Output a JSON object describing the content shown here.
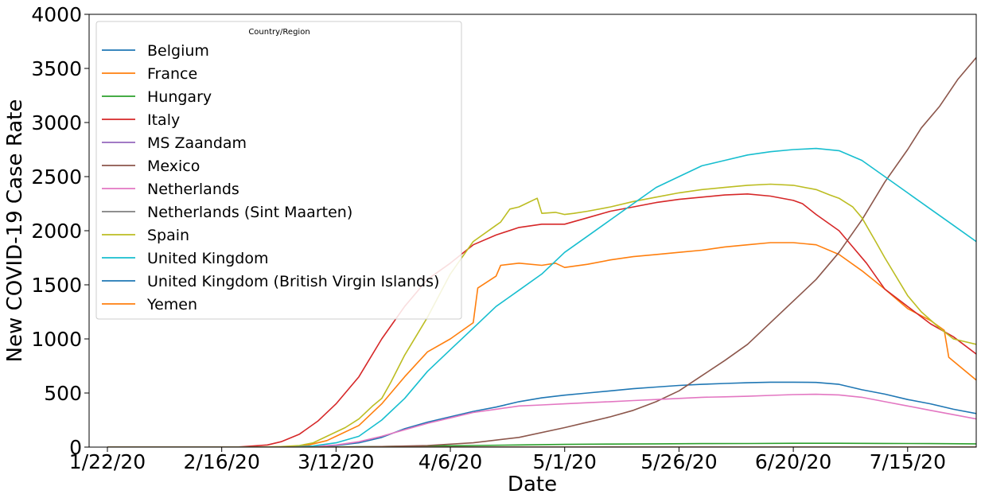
{
  "chart_data": {
    "type": "line",
    "title": "",
    "xlabel": "Date",
    "ylabel": "New COVID-19 Case Rate",
    "ylim": [
      0,
      4000
    ],
    "yticks": [
      0,
      500,
      1000,
      1500,
      2000,
      2500,
      3000,
      3500,
      4000
    ],
    "xlim": [
      -4,
      190
    ],
    "xtick_days": [
      0,
      25,
      50,
      75,
      100,
      125,
      150,
      175
    ],
    "xtick_labels": [
      "1/22/20",
      "2/16/20",
      "3/12/20",
      "4/6/20",
      "5/1/20",
      "5/26/20",
      "6/20/20",
      "7/15/20"
    ],
    "grid": false,
    "legend": {
      "title": "Country/Region",
      "location": "upper-left"
    },
    "series": [
      {
        "name": "Belgium",
        "color": "#1f77b4",
        "points": [
          [
            0,
            0
          ],
          [
            40,
            0
          ],
          [
            45,
            5
          ],
          [
            50,
            15
          ],
          [
            55,
            40
          ],
          [
            60,
            90
          ],
          [
            65,
            170
          ],
          [
            70,
            230
          ],
          [
            75,
            280
          ],
          [
            80,
            330
          ],
          [
            85,
            370
          ],
          [
            90,
            420
          ],
          [
            95,
            455
          ],
          [
            100,
            480
          ],
          [
            105,
            500
          ],
          [
            110,
            520
          ],
          [
            115,
            540
          ],
          [
            120,
            555
          ],
          [
            125,
            570
          ],
          [
            130,
            580
          ],
          [
            135,
            588
          ],
          [
            140,
            595
          ],
          [
            145,
            600
          ],
          [
            150,
            600
          ],
          [
            155,
            598
          ],
          [
            160,
            580
          ],
          [
            165,
            530
          ],
          [
            170,
            490
          ],
          [
            175,
            440
          ],
          [
            180,
            400
          ],
          [
            185,
            350
          ],
          [
            190,
            310
          ],
          [
            195,
            280
          ]
        ]
      },
      {
        "name": "France",
        "color": "#ff7f0e",
        "points": [
          [
            0,
            0
          ],
          [
            35,
            0
          ],
          [
            40,
            5
          ],
          [
            44,
            20
          ],
          [
            48,
            60
          ],
          [
            50,
            100
          ],
          [
            55,
            200
          ],
          [
            60,
            400
          ],
          [
            65,
            650
          ],
          [
            70,
            880
          ],
          [
            75,
            1000
          ],
          [
            80,
            1150
          ],
          [
            81,
            1470
          ],
          [
            85,
            1580
          ],
          [
            86,
            1680
          ],
          [
            90,
            1700
          ],
          [
            95,
            1680
          ],
          [
            98,
            1700
          ],
          [
            100,
            1660
          ],
          [
            105,
            1690
          ],
          [
            110,
            1730
          ],
          [
            115,
            1760
          ],
          [
            120,
            1780
          ],
          [
            125,
            1800
          ],
          [
            130,
            1820
          ],
          [
            135,
            1850
          ],
          [
            140,
            1870
          ],
          [
            145,
            1890
          ],
          [
            150,
            1890
          ],
          [
            155,
            1870
          ],
          [
            160,
            1780
          ],
          [
            165,
            1630
          ],
          [
            170,
            1460
          ],
          [
            175,
            1280
          ],
          [
            180,
            1170
          ],
          [
            183,
            1080
          ],
          [
            184,
            830
          ],
          [
            190,
            620
          ],
          [
            193,
            580
          ],
          [
            195,
            560
          ]
        ]
      },
      {
        "name": "Hungary",
        "color": "#2ca02c",
        "points": [
          [
            0,
            0
          ],
          [
            45,
            0
          ],
          [
            50,
            2
          ],
          [
            60,
            5
          ],
          [
            70,
            10
          ],
          [
            80,
            15
          ],
          [
            90,
            20
          ],
          [
            100,
            25
          ],
          [
            110,
            28
          ],
          [
            120,
            30
          ],
          [
            130,
            32
          ],
          [
            140,
            33
          ],
          [
            150,
            35
          ],
          [
            160,
            35
          ],
          [
            170,
            34
          ],
          [
            180,
            32
          ],
          [
            190,
            30
          ],
          [
            195,
            28
          ]
        ]
      },
      {
        "name": "Italy",
        "color": "#d62728",
        "points": [
          [
            0,
            0
          ],
          [
            28,
            0
          ],
          [
            30,
            5
          ],
          [
            35,
            20
          ],
          [
            38,
            50
          ],
          [
            42,
            120
          ],
          [
            46,
            240
          ],
          [
            50,
            400
          ],
          [
            55,
            650
          ],
          [
            60,
            1000
          ],
          [
            65,
            1300
          ],
          [
            70,
            1550
          ],
          [
            75,
            1700
          ],
          [
            80,
            1870
          ],
          [
            85,
            1960
          ],
          [
            90,
            2030
          ],
          [
            95,
            2060
          ],
          [
            100,
            2060
          ],
          [
            105,
            2120
          ],
          [
            110,
            2180
          ],
          [
            115,
            2220
          ],
          [
            120,
            2260
          ],
          [
            125,
            2290
          ],
          [
            130,
            2310
          ],
          [
            135,
            2330
          ],
          [
            140,
            2340
          ],
          [
            145,
            2320
          ],
          [
            150,
            2280
          ],
          [
            152,
            2250
          ],
          [
            155,
            2150
          ],
          [
            160,
            2000
          ],
          [
            163,
            1850
          ],
          [
            166,
            1700
          ],
          [
            170,
            1460
          ],
          [
            175,
            1300
          ],
          [
            180,
            1140
          ],
          [
            185,
            1020
          ],
          [
            190,
            860
          ],
          [
            195,
            680
          ]
        ]
      },
      {
        "name": "MS Zaandam",
        "color": "#9467bd",
        "points": [
          [
            0,
            0
          ],
          [
            195,
            0
          ]
        ]
      },
      {
        "name": "Mexico",
        "color": "#8c564b",
        "points": [
          [
            0,
            0
          ],
          [
            50,
            0
          ],
          [
            60,
            5
          ],
          [
            70,
            15
          ],
          [
            80,
            40
          ],
          [
            90,
            90
          ],
          [
            100,
            180
          ],
          [
            105,
            230
          ],
          [
            110,
            280
          ],
          [
            115,
            340
          ],
          [
            120,
            420
          ],
          [
            125,
            520
          ],
          [
            130,
            660
          ],
          [
            135,
            800
          ],
          [
            140,
            950
          ],
          [
            145,
            1150
          ],
          [
            150,
            1350
          ],
          [
            155,
            1550
          ],
          [
            160,
            1800
          ],
          [
            165,
            2100
          ],
          [
            170,
            2450
          ],
          [
            175,
            2750
          ],
          [
            178,
            2950
          ],
          [
            182,
            3150
          ],
          [
            186,
            3400
          ],
          [
            190,
            3600
          ],
          [
            192,
            3700
          ],
          [
            195,
            3870
          ]
        ]
      },
      {
        "name": "Netherlands",
        "color": "#e377c2",
        "points": [
          [
            0,
            0
          ],
          [
            40,
            0
          ],
          [
            45,
            5
          ],
          [
            50,
            20
          ],
          [
            55,
            50
          ],
          [
            60,
            100
          ],
          [
            65,
            160
          ],
          [
            70,
            220
          ],
          [
            75,
            270
          ],
          [
            80,
            320
          ],
          [
            85,
            350
          ],
          [
            90,
            380
          ],
          [
            95,
            390
          ],
          [
            100,
            400
          ],
          [
            105,
            410
          ],
          [
            110,
            420
          ],
          [
            115,
            430
          ],
          [
            120,
            440
          ],
          [
            125,
            450
          ],
          [
            130,
            460
          ],
          [
            135,
            465
          ],
          [
            140,
            470
          ],
          [
            145,
            478
          ],
          [
            150,
            485
          ],
          [
            155,
            488
          ],
          [
            160,
            482
          ],
          [
            165,
            460
          ],
          [
            170,
            420
          ],
          [
            175,
            380
          ],
          [
            180,
            340
          ],
          [
            185,
            300
          ],
          [
            190,
            260
          ],
          [
            195,
            210
          ]
        ]
      },
      {
        "name": "Netherlands (Sint Maarten)",
        "color": "#7f7f7f",
        "points": [
          [
            0,
            0
          ],
          [
            195,
            0
          ]
        ]
      },
      {
        "name": "Spain",
        "color": "#bcbd22",
        "points": [
          [
            0,
            0
          ],
          [
            32,
            0
          ],
          [
            38,
            5
          ],
          [
            42,
            15
          ],
          [
            45,
            40
          ],
          [
            48,
            100
          ],
          [
            52,
            180
          ],
          [
            55,
            260
          ],
          [
            58,
            380
          ],
          [
            60,
            450
          ],
          [
            62,
            600
          ],
          [
            65,
            850
          ],
          [
            70,
            1200
          ],
          [
            75,
            1600
          ],
          [
            80,
            1900
          ],
          [
            85,
            2050
          ],
          [
            86,
            2080
          ],
          [
            88,
            2200
          ],
          [
            90,
            2220
          ],
          [
            92,
            2260
          ],
          [
            94,
            2300
          ],
          [
            95,
            2160
          ],
          [
            98,
            2170
          ],
          [
            100,
            2150
          ],
          [
            102,
            2160
          ],
          [
            105,
            2180
          ],
          [
            110,
            2220
          ],
          [
            115,
            2270
          ],
          [
            120,
            2310
          ],
          [
            125,
            2350
          ],
          [
            130,
            2380
          ],
          [
            135,
            2400
          ],
          [
            140,
            2420
          ],
          [
            145,
            2430
          ],
          [
            150,
            2420
          ],
          [
            155,
            2380
          ],
          [
            158,
            2330
          ],
          [
            160,
            2300
          ],
          [
            163,
            2220
          ],
          [
            165,
            2120
          ],
          [
            168,
            1900
          ],
          [
            170,
            1750
          ],
          [
            175,
            1400
          ],
          [
            178,
            1250
          ],
          [
            182,
            1100
          ],
          [
            185,
            1000
          ],
          [
            190,
            950
          ],
          [
            193,
            800
          ],
          [
            195,
            730
          ]
        ]
      },
      {
        "name": "United Kingdom",
        "color": "#17becf",
        "points": [
          [
            0,
            0
          ],
          [
            40,
            0
          ],
          [
            45,
            10
          ],
          [
            50,
            40
          ],
          [
            55,
            100
          ],
          [
            60,
            250
          ],
          [
            65,
            450
          ],
          [
            70,
            700
          ],
          [
            75,
            900
          ],
          [
            80,
            1100
          ],
          [
            85,
            1300
          ],
          [
            90,
            1450
          ],
          [
            95,
            1600
          ],
          [
            100,
            1800
          ],
          [
            105,
            1950
          ],
          [
            110,
            2100
          ],
          [
            115,
            2250
          ],
          [
            120,
            2400
          ],
          [
            125,
            2500
          ],
          [
            130,
            2600
          ],
          [
            135,
            2650
          ],
          [
            140,
            2700
          ],
          [
            145,
            2730
          ],
          [
            150,
            2750
          ],
          [
            155,
            2760
          ],
          [
            160,
            2740
          ],
          [
            165,
            2650
          ],
          [
            170,
            2500
          ],
          [
            175,
            2350
          ],
          [
            180,
            2200
          ],
          [
            185,
            2050
          ],
          [
            190,
            1900
          ],
          [
            195,
            1740
          ]
        ]
      },
      {
        "name": "United Kingdom (British Virgin Islands)",
        "color": "#1f77b4",
        "points": [
          [
            0,
            0
          ],
          [
            195,
            0
          ]
        ]
      },
      {
        "name": "Yemen",
        "color": "#ff7f0e",
        "points": [
          [
            0,
            0
          ],
          [
            195,
            0
          ]
        ]
      }
    ]
  }
}
